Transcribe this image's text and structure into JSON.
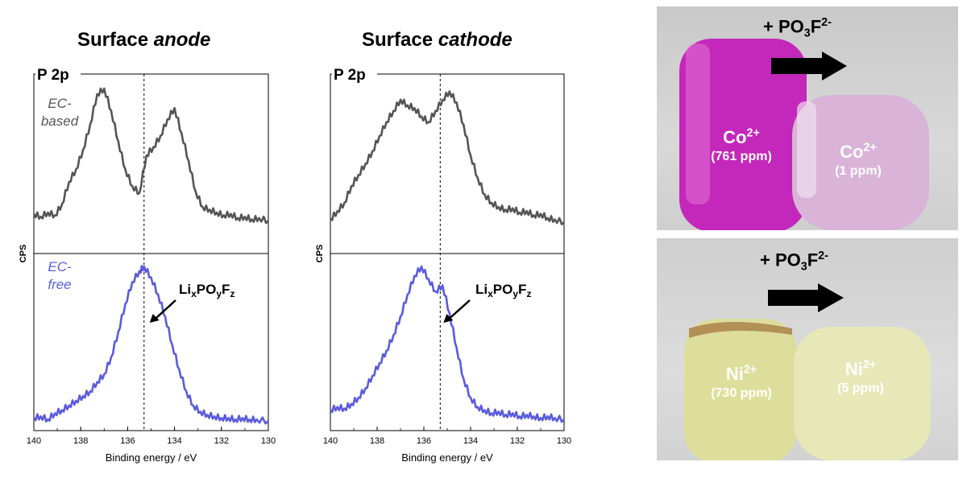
{
  "chart_data": [
    {
      "type": "line",
      "title": "Surface anode",
      "title_plain": "Surface ",
      "title_italic": "anode",
      "panel_label": "P 2p",
      "xlabel": "Binding energy / eV",
      "ylabel": "CPS",
      "xlim": [
        140,
        130
      ],
      "xticks": [
        140,
        138,
        136,
        134,
        132,
        130
      ],
      "reference_line_x": 135.3,
      "annotation": {
        "text": "LixPOyFz",
        "x": 135.2
      },
      "series": [
        {
          "name": "EC-based",
          "label_line1": "EC-",
          "label_line2": "based",
          "color": "#555555",
          "x": [
            140,
            139.7,
            139.4,
            139.1,
            138.8,
            138.5,
            138.2,
            137.9,
            137.6,
            137.3,
            137.0,
            136.7,
            136.4,
            136.1,
            135.8,
            135.5,
            135.2,
            134.9,
            134.6,
            134.3,
            134.0,
            133.7,
            133.4,
            133.1,
            132.8,
            132.5,
            132.2,
            131.9,
            131.6,
            131.3,
            131.0,
            130.7,
            130.4,
            130.0
          ],
          "y": [
            0.1,
            0.08,
            0.11,
            0.09,
            0.17,
            0.33,
            0.42,
            0.56,
            0.74,
            0.96,
            1.0,
            0.84,
            0.62,
            0.42,
            0.3,
            0.25,
            0.52,
            0.58,
            0.66,
            0.78,
            0.86,
            0.68,
            0.48,
            0.26,
            0.15,
            0.13,
            0.11,
            0.09,
            0.1,
            0.07,
            0.08,
            0.06,
            0.07,
            0.05
          ]
        },
        {
          "name": "EC-free",
          "label_line1": "EC-",
          "label_line2": "free",
          "color": "#5b5bdc",
          "x": [
            140,
            139.7,
            139.4,
            139.1,
            138.8,
            138.5,
            138.2,
            137.9,
            137.6,
            137.3,
            137.0,
            136.7,
            136.4,
            136.1,
            135.8,
            135.5,
            135.3,
            135.0,
            134.7,
            134.4,
            134.1,
            133.8,
            133.5,
            133.2,
            132.9,
            132.6,
            132.3,
            132.0,
            131.7,
            131.4,
            131.1,
            130.8,
            130.5,
            130.0
          ],
          "y": [
            0.03,
            0.04,
            0.02,
            0.06,
            0.08,
            0.11,
            0.14,
            0.17,
            0.2,
            0.26,
            0.31,
            0.42,
            0.58,
            0.76,
            0.9,
            0.97,
            1.0,
            0.93,
            0.82,
            0.68,
            0.5,
            0.34,
            0.2,
            0.11,
            0.07,
            0.05,
            0.04,
            0.03,
            0.03,
            0.02,
            0.03,
            0.02,
            0.02,
            0.01
          ]
        }
      ]
    },
    {
      "type": "line",
      "title": "Surface cathode",
      "title_plain": "Surface ",
      "title_italic": "cathode",
      "panel_label": "P 2p",
      "xlabel": "Binding energy / eV",
      "ylabel": "CPS",
      "xlim": [
        140,
        130
      ],
      "xticks": [
        140,
        138,
        136,
        134,
        132,
        130
      ],
      "reference_line_x": 135.3,
      "annotation": {
        "text": "LixPOyFz",
        "x": 135.3
      },
      "series": [
        {
          "name": "EC-based",
          "color": "#555555",
          "x": [
            140,
            139.7,
            139.4,
            139.1,
            138.8,
            138.5,
            138.2,
            137.9,
            137.6,
            137.3,
            137.0,
            136.7,
            136.4,
            136.1,
            135.8,
            135.5,
            135.2,
            134.9,
            134.6,
            134.3,
            134.0,
            133.7,
            133.4,
            133.1,
            132.8,
            132.5,
            132.2,
            131.9,
            131.6,
            131.3,
            131.0,
            130.7,
            130.4,
            130.0
          ],
          "y": [
            0.06,
            0.12,
            0.18,
            0.3,
            0.38,
            0.46,
            0.55,
            0.66,
            0.76,
            0.84,
            0.92,
            0.88,
            0.86,
            0.8,
            0.76,
            0.84,
            0.92,
            0.98,
            0.9,
            0.74,
            0.52,
            0.36,
            0.24,
            0.18,
            0.15,
            0.13,
            0.14,
            0.11,
            0.12,
            0.09,
            0.1,
            0.07,
            0.06,
            0.04
          ]
        },
        {
          "name": "EC-free",
          "color": "#5b5bdc",
          "x": [
            140,
            139.7,
            139.4,
            139.1,
            138.8,
            138.5,
            138.2,
            137.9,
            137.6,
            137.3,
            137.0,
            136.7,
            136.4,
            136.1,
            135.8,
            135.5,
            135.2,
            134.9,
            134.6,
            134.3,
            134.0,
            133.7,
            133.4,
            133.1,
            132.8,
            132.5,
            132.2,
            131.9,
            131.6,
            131.3,
            131.0,
            130.7,
            130.4,
            130.0
          ],
          "y": [
            0.08,
            0.1,
            0.09,
            0.12,
            0.16,
            0.22,
            0.3,
            0.38,
            0.46,
            0.56,
            0.68,
            0.82,
            0.94,
            1.0,
            0.92,
            0.84,
            0.88,
            0.7,
            0.48,
            0.28,
            0.16,
            0.1,
            0.08,
            0.06,
            0.07,
            0.05,
            0.06,
            0.04,
            0.05,
            0.04,
            0.03,
            0.04,
            0.03,
            0.02
          ]
        }
      ]
    }
  ],
  "photos": {
    "top": {
      "arrow_label_prefix": "+ PO",
      "arrow_label_sub": "3",
      "arrow_label_mid": "F",
      "arrow_label_sup": "2-",
      "left_ion_symbol": "Co",
      "left_ion_charge": "2+",
      "left_ion_conc": "(761 ppm)",
      "right_ion_symbol": "Co",
      "right_ion_charge": "2+",
      "right_ion_conc": "(1 ppm)",
      "left_liquid_color": "#c21fb8",
      "right_liquid_color": "#d9b3d8"
    },
    "bottom": {
      "arrow_label_prefix": "+ PO",
      "arrow_label_sub": "3",
      "arrow_label_mid": "F",
      "arrow_label_sup": "2-",
      "left_ion_symbol": "Ni",
      "left_ion_charge": "2+",
      "left_ion_conc": "(730 ppm)",
      "right_ion_symbol": "Ni",
      "right_ion_charge": "2+",
      "right_ion_conc": "(5 ppm)",
      "left_liquid_color": "#dede9c",
      "right_liquid_color": "#e6e8b8"
    }
  }
}
